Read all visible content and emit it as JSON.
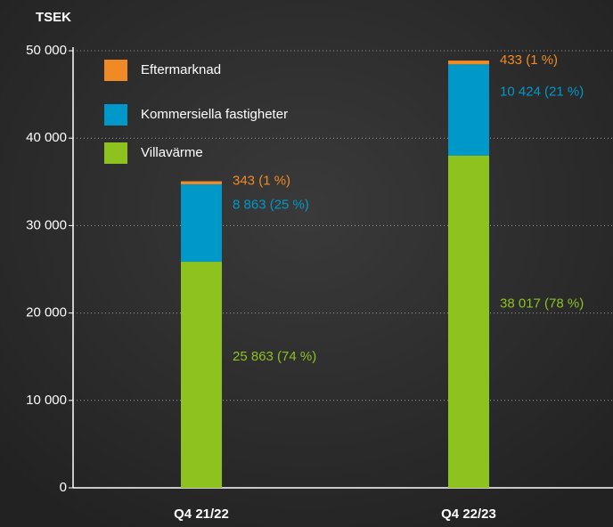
{
  "chart_data": {
    "type": "stacked-bar",
    "y_label": "TSEK",
    "categories": [
      "Q4 21/22",
      "Q4 22/23"
    ],
    "series": [
      {
        "name": "Villavärme",
        "color": "#8dc21f",
        "values": [
          25863,
          38017
        ],
        "value_labels": [
          "25 863 (74 %)",
          "38 017 (78 %)"
        ]
      },
      {
        "name": "Kommersiella fastigheter",
        "color": "#0098c8",
        "values": [
          8863,
          10424
        ],
        "value_labels": [
          "8 863 (25 %)",
          "10 424 (21 %)"
        ]
      },
      {
        "name": "Eftermarknad",
        "color": "#f08a24",
        "values": [
          343,
          433
        ],
        "value_labels": [
          "343 (1 %)",
          "433 (1 %)"
        ]
      }
    ],
    "ylim": [
      0,
      50000
    ],
    "yticks": [
      0,
      {
        "value": 10000,
        "label": "10 000"
      },
      {
        "value": 20000,
        "label": "20 000"
      },
      {
        "value": 30000,
        "label": "30 000"
      },
      {
        "value": 40000,
        "label": "40 000"
      },
      {
        "value": 50000,
        "label": "50 000"
      }
    ],
    "grid": true
  }
}
